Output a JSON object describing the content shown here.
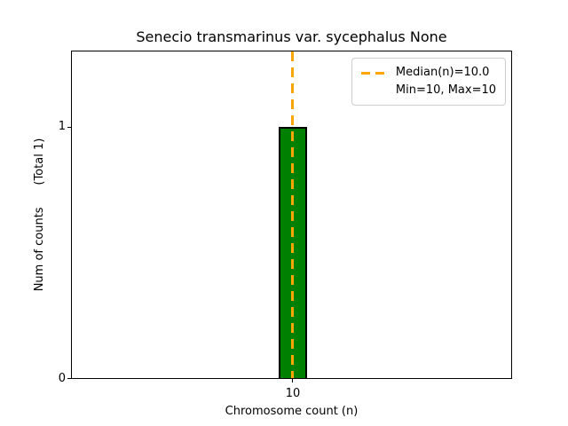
{
  "chart_data": {
    "type": "bar",
    "title": "Senecio transmarinus var. sycephalus None",
    "xlabel": "Chromosome count (n)",
    "ylabel": "Num of counts      (Total 1)",
    "categories": [
      10
    ],
    "values": [
      1
    ],
    "total_counts": 1,
    "xticks": [
      "10"
    ],
    "yticks": [
      "0",
      "1"
    ],
    "ylim": [
      0,
      1.3
    ],
    "grid": false,
    "bar_color": "#008000",
    "bar_edge_color": "#000000",
    "median_line": {
      "x": 10.0,
      "color": "#FFA500",
      "style": "dashed"
    },
    "legend": {
      "position": "upper right",
      "entries": [
        "Median(n)=10.0",
        "Min=10, Max=10"
      ]
    }
  }
}
